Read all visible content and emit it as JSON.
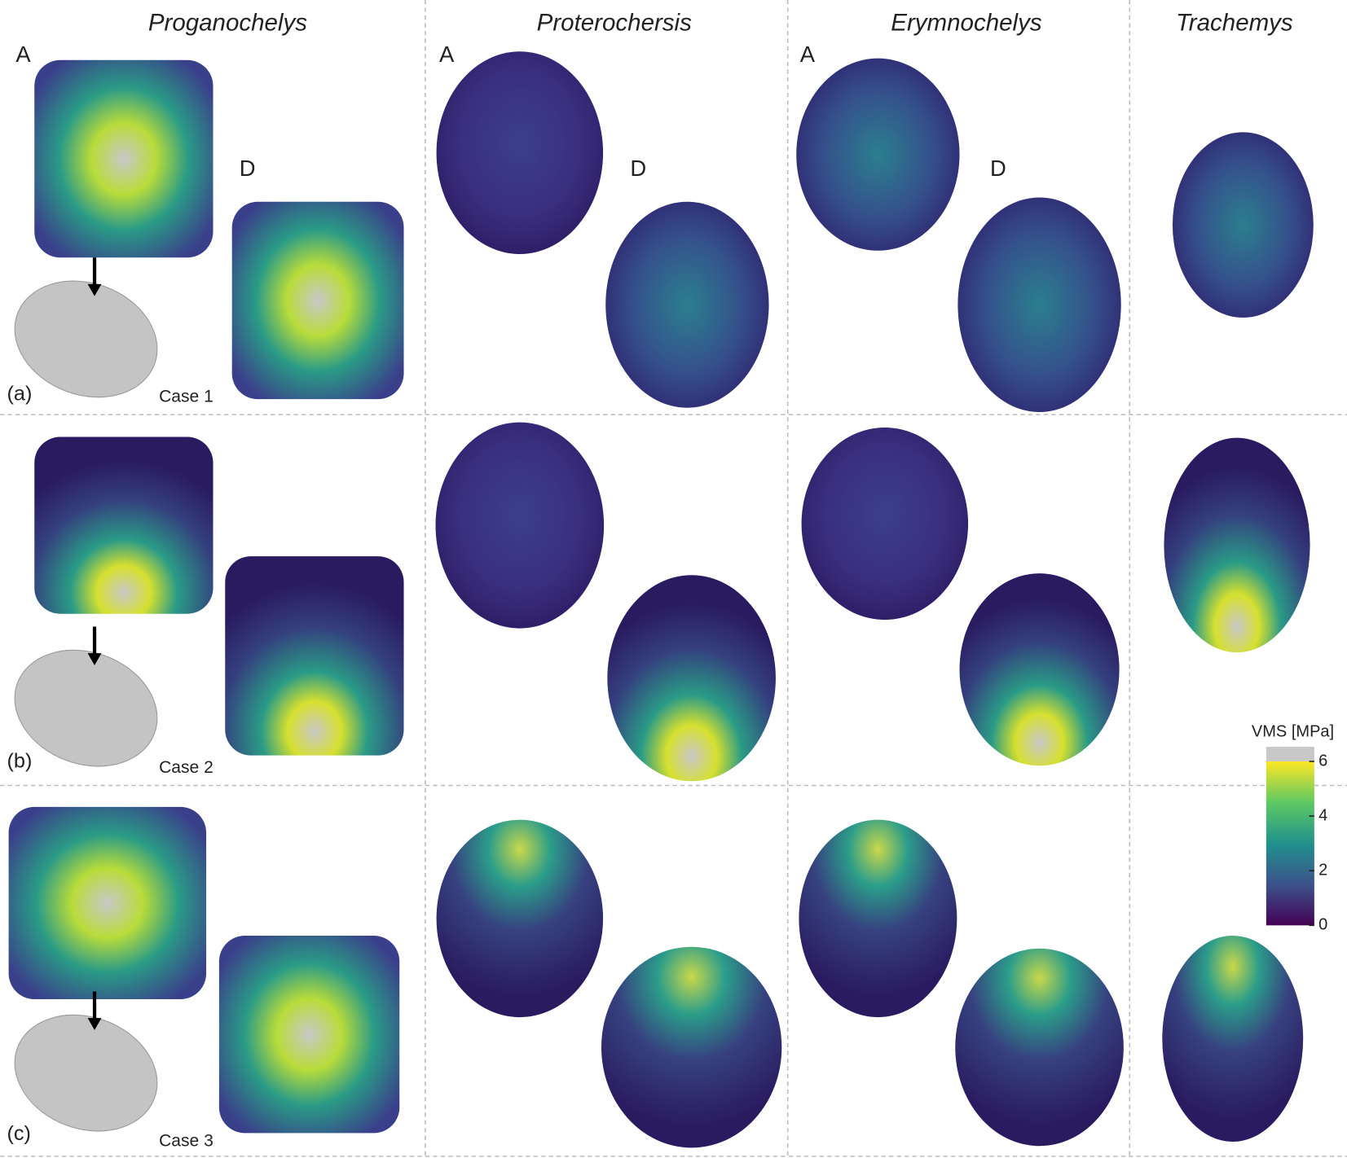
{
  "columns": [
    "Proganochelys",
    "Proterochersis",
    "Erymnochelys",
    "Trachemys"
  ],
  "view_labels": [
    "A",
    "D",
    "A",
    "D",
    "A",
    "D"
  ],
  "rows": [
    {
      "label": "(a)",
      "case": "Case 1"
    },
    {
      "label": "(b)",
      "case": "Case 2"
    },
    {
      "label": "(c)",
      "case": "Case 3"
    }
  ],
  "colorbar": {
    "title": "VMS [MPa]",
    "lim": [
      0,
      6
    ],
    "ticks": [
      0,
      2,
      4,
      6
    ]
  }
}
